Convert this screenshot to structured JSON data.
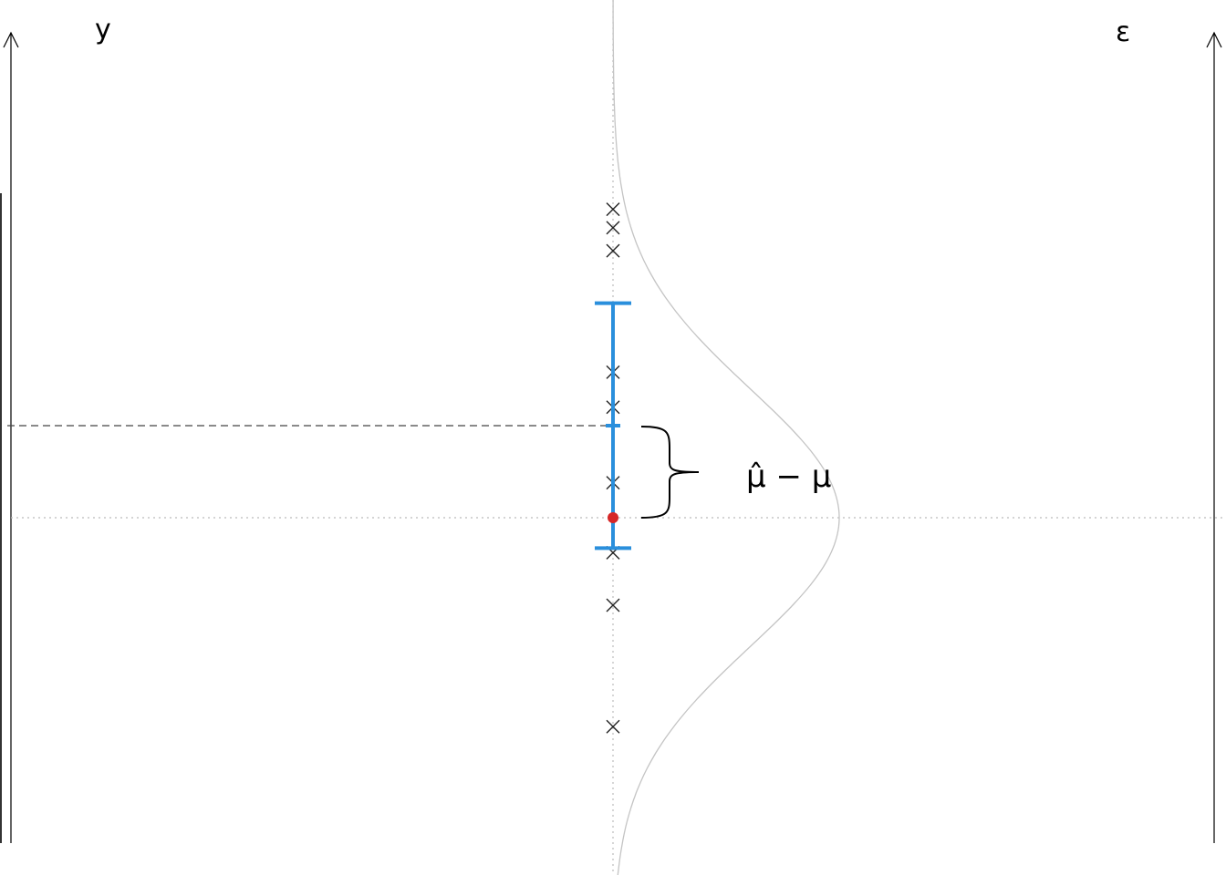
{
  "axes": {
    "left_label": "y",
    "right_label": "ε"
  },
  "annotation": {
    "label": "μ̂ − μ"
  },
  "colors": {
    "axis": "#000000",
    "guide": "#bbbbbb",
    "density_curve": "#c4c4c4",
    "interval": "#2a8fdc",
    "true_mean_point": "#d62728",
    "observation_marker": "#222222",
    "estimate_line": "#444444"
  },
  "icons": {
    "observation": "cross-marker",
    "true_mean": "filled-circle"
  },
  "chart_data": {
    "type": "scatter",
    "description_values": {
      "true_mean": 0,
      "estimate": 1,
      "interval_lower": -0.33,
      "interval_upper": 2.33,
      "observations": [
        3.35,
        3.15,
        2.9,
        1.58,
        1.2,
        0.38,
        -0.38,
        -0.95,
        -2.27
      ]
    },
    "distribution": "normal",
    "distribution_sd": 1.4
  }
}
